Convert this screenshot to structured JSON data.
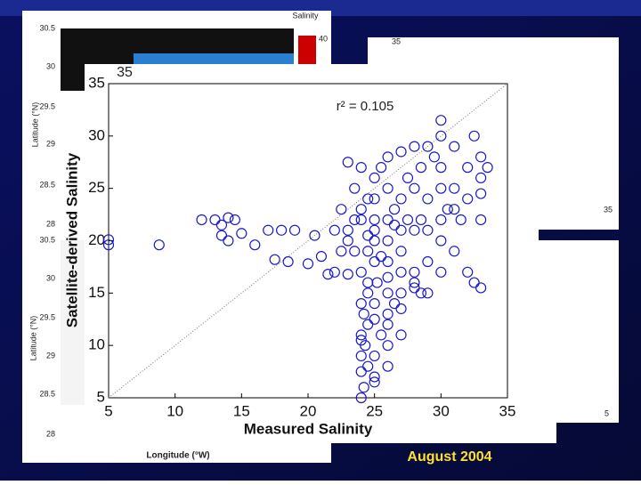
{
  "chart_data": {
    "type": "scatter",
    "xlabel": "Measured Salinity",
    "ylabel": "Satellite-derived Salinity",
    "annotation": "r² = 0.105",
    "xlim": [
      5,
      35
    ],
    "ylim": [
      5,
      35
    ],
    "xticks": [
      5,
      10,
      15,
      20,
      25,
      30,
      35
    ],
    "yticks": [
      5,
      10,
      15,
      20,
      25,
      30,
      35
    ],
    "color": "#1a1acc",
    "reference_line": true,
    "x": [
      5,
      5,
      8.8,
      12,
      13,
      13.5,
      14,
      14.5,
      13.5,
      14,
      15,
      16,
      17,
      17.5,
      18,
      18.5,
      19,
      20,
      20.5,
      21,
      22,
      22.5,
      23,
      22,
      21.5,
      23,
      24,
      24.2,
      24,
      24.5,
      24,
      24.3,
      24,
      24.5,
      24.2,
      24,
      25,
      24.5,
      25.2,
      24,
      25,
      24.5,
      26,
      25.5,
      26,
      25,
      26.5,
      27,
      26,
      27,
      28,
      28.5,
      25,
      25,
      26,
      24,
      23.5,
      23,
      24,
      25,
      26,
      27,
      26,
      27,
      28,
      29,
      25,
      26.5,
      27.5,
      28,
      28.5,
      29,
      30,
      30,
      31,
      32,
      32.5,
      33,
      30,
      30,
      30,
      30,
      29.5,
      31,
      32,
      33,
      33,
      32.5,
      32,
      33.5,
      31.5,
      30,
      29,
      28,
      27,
      26,
      27,
      28,
      29,
      26,
      25,
      24,
      23,
      22.5,
      23.5,
      24.5,
      25.5,
      27.5,
      28.5,
      31,
      30.5,
      33,
      33,
      31,
      26,
      25,
      27,
      28,
      29,
      23.5,
      24.5,
      26.5,
      27,
      25.5,
      26,
      24.5,
      25,
      24,
      25,
      26
    ],
    "y": [
      20.1,
      19.6,
      19.6,
      22,
      22,
      21.5,
      22.2,
      22,
      20.5,
      20,
      20.7,
      19.6,
      21,
      18.2,
      21,
      18,
      21,
      17.8,
      20.5,
      18.5,
      21,
      19,
      20,
      17,
      16.8,
      16.8,
      5,
      6,
      7.5,
      8,
      9,
      10,
      11,
      12,
      13,
      14,
      14,
      15,
      16,
      17,
      18,
      19,
      12,
      11,
      10,
      9,
      14,
      13.5,
      15,
      15,
      15.5,
      15,
      20,
      21,
      22,
      23,
      25,
      27.5,
      27,
      26,
      25,
      24,
      28,
      28.5,
      29,
      29,
      24,
      23,
      22,
      21,
      22,
      21,
      22,
      20,
      19,
      17,
      16,
      15.5,
      25,
      27,
      30,
      31.5,
      28,
      25,
      27,
      26,
      28,
      30,
      24,
      27,
      22,
      17,
      18,
      17,
      19,
      20,
      17,
      25,
      24,
      18,
      22,
      22,
      21,
      23,
      19,
      24,
      27,
      26,
      27,
      29,
      23,
      24.5,
      22,
      23,
      8,
      6.5,
      11,
      16,
      15,
      22,
      20.5,
      21.5,
      21,
      18.5,
      16.5,
      16,
      12.5,
      10.5,
      7,
      13
    ]
  },
  "background_panels": {
    "top_map": {
      "colorbar_title": "Salinity",
      "colorbar_tick": "40",
      "ylabel": "Latitude (°N)",
      "yticks": [
        "30.5",
        "30",
        "29.5",
        "29",
        "28.5",
        "28"
      ]
    },
    "bottom_map": {
      "ylabel": "Latitude (°N)",
      "xlabel": "Longitude (°W)",
      "yticks": [
        "30.5",
        "30",
        "29.5",
        "29",
        "28.5",
        "28"
      ]
    },
    "hidden_plot_tick": "35",
    "right_top_tick": "35",
    "right_top_corner_tick": "35",
    "right_bottom_corner_tick": "5"
  },
  "caption": "August 2004"
}
